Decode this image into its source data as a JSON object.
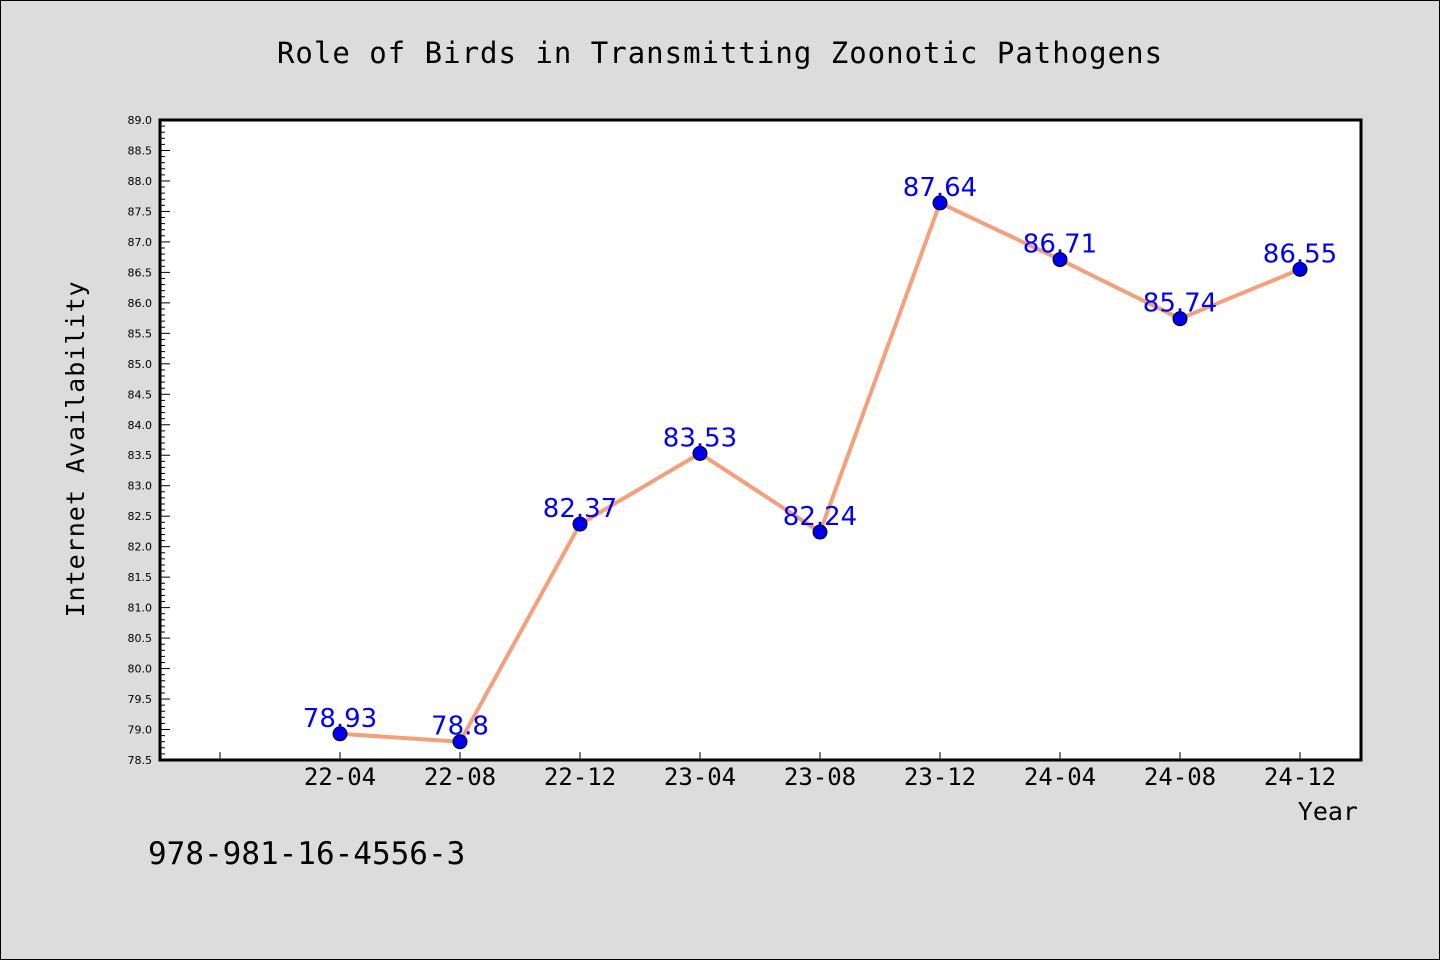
{
  "chart_data": {
    "type": "line",
    "title": "Role of Birds in Transmitting Zoonotic Pathogens",
    "xlabel": "Year",
    "ylabel": "Internet Availability",
    "categories": [
      "22-04",
      "22-08",
      "22-12",
      "23-04",
      "23-08",
      "23-12",
      "24-04",
      "24-08",
      "24-12"
    ],
    "values": [
      78.93,
      78.8,
      82.37,
      83.53,
      82.24,
      87.64,
      86.71,
      85.74,
      86.55
    ],
    "data_labels": [
      "78.93",
      "78.8",
      "82.37",
      "83.53",
      "82.24",
      "87.64",
      "86.71",
      "85.74",
      "86.55"
    ],
    "ylim": [
      78.5,
      89.0
    ],
    "y_ticks": [
      "78.5",
      "79.0",
      "79.5",
      "80.0",
      "80.5",
      "81.0",
      "81.5",
      "82.0",
      "82.5",
      "83.0",
      "83.5",
      "84.0",
      "84.5",
      "85.0",
      "85.5",
      "86.0",
      "86.5",
      "87.0",
      "87.5",
      "88.0",
      "88.5",
      "89.0"
    ],
    "grid": false,
    "line_color": "#f4a07c",
    "marker_color": "#0000ee",
    "label_color": "#0000ff",
    "plot_background": "#ffffff",
    "figure_background": "#dcdcdc"
  },
  "footer": {
    "isbn": "978-981-16-4556-3"
  }
}
